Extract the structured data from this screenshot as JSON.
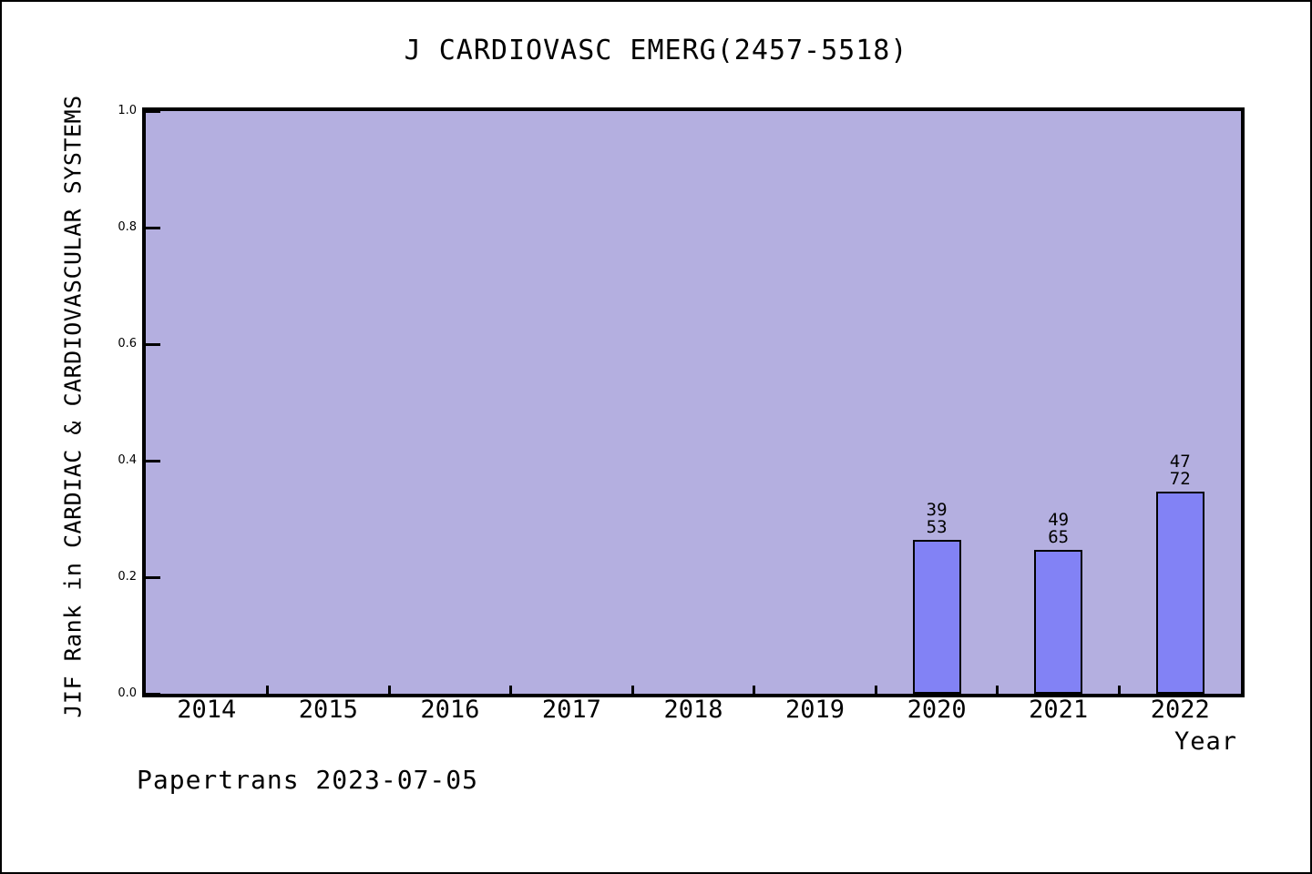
{
  "title": "J CARDIOVASC EMERG(2457-5518)",
  "footer": "Papertrans 2023-07-05",
  "chart_data": {
    "type": "bar",
    "title": "J CARDIOVASC EMERG(2457-5518)",
    "xlabel": "Year",
    "ylabel": "JIF Rank in CARDIAC & CARDIOVASCULAR SYSTEMS",
    "categories": [
      "2014",
      "2015",
      "2016",
      "2017",
      "2018",
      "2019",
      "2020",
      "2021",
      "2022"
    ],
    "values": [
      null,
      null,
      null,
      null,
      null,
      null,
      0.264,
      0.246,
      0.347
    ],
    "bars": [
      {
        "category": "2020",
        "rank": 39,
        "total": 53,
        "label_lines": [
          "39",
          "53"
        ],
        "value": 0.264
      },
      {
        "category": "2021",
        "rank": 49,
        "total": 65,
        "label_lines": [
          "49",
          "65"
        ],
        "value": 0.246
      },
      {
        "category": "2022",
        "rank": 47,
        "total": 72,
        "label_lines": [
          "47",
          "72"
        ],
        "value": 0.347
      }
    ],
    "ylim": [
      0.0,
      1.0
    ],
    "yticks": [
      "0.0",
      "0.2",
      "0.4",
      "0.6",
      "0.8",
      "1.0"
    ],
    "grid": false,
    "legend": "none",
    "colors": {
      "plot_background": "#b4afe0",
      "bar_fill": "#8282f5",
      "bar_border": "#000000",
      "frame": "#000000",
      "text": "#000000"
    }
  }
}
